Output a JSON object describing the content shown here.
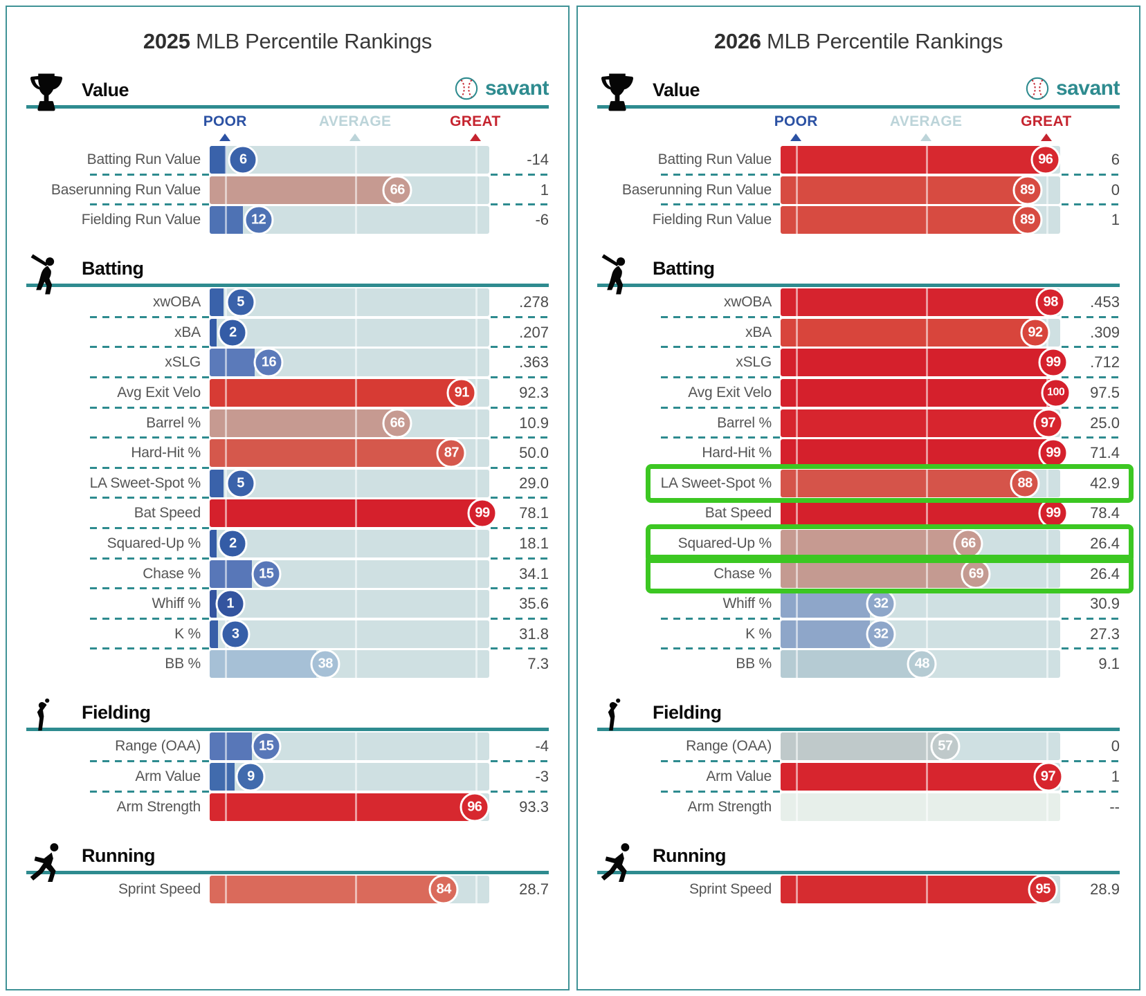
{
  "ui": {
    "logo_text": "savant",
    "scale_labels": {
      "poor": "POOR",
      "average": "AVERAGE",
      "great": "GREAT"
    },
    "scale_marker_positions_pct": [
      5.5,
      52,
      95
    ],
    "colors": {
      "teal_rule": "#2E8B8F",
      "panel_border": "#3f9296",
      "track": "#CFE0E2",
      "track_empty": "#E7EFEA",
      "highlight_green": "#3CC722",
      "poor_blue": "#2B51A3",
      "average_blue": "#BCD4D9",
      "great_red": "#C5242F",
      "label_text": "#555555",
      "value_text": "#4A4A4A",
      "title_text": "#383838"
    }
  },
  "chart_data": {
    "type": "bar",
    "orientation": "horizontal",
    "scale": [
      0,
      100
    ],
    "scale_note": "percentile bars; POOR/AVERAGE/GREAT markers; bubble shows percentile, right column shows raw stat",
    "panels": [
      {
        "title_year": "2025",
        "title_rest": "MLB Percentile Rankings",
        "sections": [
          {
            "name": "Value",
            "icon": "trophy-icon",
            "has_scale_header": true,
            "has_logo": true,
            "rows": [
              {
                "label": "Batting Run Value",
                "percentile": 6,
                "value": "-14",
                "color": "#3A62AA",
                "highlight": false
              },
              {
                "label": "Baserunning Run Value",
                "percentile": 66,
                "value": "1",
                "color": "#C69A91",
                "highlight": false
              },
              {
                "label": "Fielding Run Value",
                "percentile": 12,
                "value": "-6",
                "color": "#4E72B4",
                "highlight": false
              }
            ]
          },
          {
            "name": "Batting",
            "icon": "batter-icon",
            "has_scale_header": false,
            "has_logo": false,
            "rows": [
              {
                "label": "xwOBA",
                "percentile": 5,
                "value": ".278",
                "color": "#3A62AA",
                "highlight": false
              },
              {
                "label": "xBA",
                "percentile": 2,
                "value": ".207",
                "color": "#345CA6",
                "highlight": false
              },
              {
                "label": "xSLG",
                "percentile": 16,
                "value": ".363",
                "color": "#5B7ABA",
                "highlight": false
              },
              {
                "label": "Avg Exit Velo",
                "percentile": 91,
                "value": "92.3",
                "color": "#D73B34",
                "highlight": false
              },
              {
                "label": "Barrel %",
                "percentile": 66,
                "value": "10.9",
                "color": "#C69A91",
                "highlight": false
              },
              {
                "label": "Hard-Hit %",
                "percentile": 87,
                "value": "50.0",
                "color": "#D5584C",
                "highlight": false
              },
              {
                "label": "LA Sweet-Spot %",
                "percentile": 5,
                "value": "29.0",
                "color": "#3A62AA",
                "highlight": false
              },
              {
                "label": "Bat Speed",
                "percentile": 99,
                "value": "78.1",
                "color": "#D5202C",
                "highlight": false
              },
              {
                "label": "Squared-Up %",
                "percentile": 2,
                "value": "18.1",
                "color": "#345CA6",
                "highlight": false
              },
              {
                "label": "Chase %",
                "percentile": 15,
                "value": "34.1",
                "color": "#5877B8",
                "highlight": false
              },
              {
                "label": "Whiff %",
                "percentile": 1,
                "value": "35.6",
                "color": "#33549F",
                "highlight": false
              },
              {
                "label": "K %",
                "percentile": 3,
                "value": "31.8",
                "color": "#375FA8",
                "highlight": false
              },
              {
                "label": "BB %",
                "percentile": 38,
                "value": "7.3",
                "color": "#A6C0D6",
                "highlight": false
              }
            ]
          },
          {
            "name": "Fielding",
            "icon": "fielder-icon",
            "has_scale_header": false,
            "has_logo": false,
            "rows": [
              {
                "label": "Range (OAA)",
                "percentile": 15,
                "value": "-4",
                "color": "#5877B8",
                "highlight": false
              },
              {
                "label": "Arm Value",
                "percentile": 9,
                "value": "-3",
                "color": "#416BAD",
                "highlight": false
              },
              {
                "label": "Arm Strength",
                "percentile": 96,
                "value": "93.3",
                "color": "#D7282F",
                "highlight": false
              }
            ]
          },
          {
            "name": "Running",
            "icon": "runner-icon",
            "has_scale_header": false,
            "has_logo": false,
            "rows": [
              {
                "label": "Sprint Speed",
                "percentile": 84,
                "value": "28.7",
                "color": "#DA6A5B",
                "highlight": false
              }
            ]
          }
        ]
      },
      {
        "title_year": "2026",
        "title_rest": "MLB Percentile Rankings",
        "sections": [
          {
            "name": "Value",
            "icon": "trophy-icon",
            "has_scale_header": true,
            "has_logo": true,
            "rows": [
              {
                "label": "Batting Run Value",
                "percentile": 96,
                "value": "6",
                "color": "#D7282F",
                "highlight": false
              },
              {
                "label": "Baserunning Run Value",
                "percentile": 89,
                "value": "0",
                "color": "#D74B41",
                "highlight": false
              },
              {
                "label": "Fielding Run Value",
                "percentile": 89,
                "value": "1",
                "color": "#D74B41",
                "highlight": false
              }
            ]
          },
          {
            "name": "Batting",
            "icon": "batter-icon",
            "has_scale_header": false,
            "has_logo": false,
            "rows": [
              {
                "label": "xwOBA",
                "percentile": 98,
                "value": ".453",
                "color": "#D6232E",
                "highlight": false
              },
              {
                "label": "xBA",
                "percentile": 92,
                "value": ".309",
                "color": "#D8453C",
                "highlight": false
              },
              {
                "label": "xSLG",
                "percentile": 99,
                "value": ".712",
                "color": "#D5202C",
                "highlight": false
              },
              {
                "label": "Avg Exit Velo",
                "percentile": 100,
                "value": "97.5",
                "color": "#D5202C",
                "highlight": false
              },
              {
                "label": "Barrel %",
                "percentile": 97,
                "value": "25.0",
                "color": "#D7252E",
                "highlight": false
              },
              {
                "label": "Hard-Hit %",
                "percentile": 99,
                "value": "71.4",
                "color": "#D5202C",
                "highlight": false
              },
              {
                "label": "LA Sweet-Spot %",
                "percentile": 88,
                "value": "42.9",
                "color": "#D5544A",
                "highlight": true
              },
              {
                "label": "Bat Speed",
                "percentile": 99,
                "value": "78.4",
                "color": "#D5202C",
                "highlight": false
              },
              {
                "label": "Squared-Up %",
                "percentile": 66,
                "value": "26.4",
                "color": "#C69A91",
                "highlight": true
              },
              {
                "label": "Chase %",
                "percentile": 69,
                "value": "26.4",
                "color": "#C49A91",
                "highlight": true
              },
              {
                "label": "Whiff %",
                "percentile": 32,
                "value": "30.9",
                "color": "#8EA6C9",
                "highlight": false
              },
              {
                "label": "K %",
                "percentile": 32,
                "value": "27.3",
                "color": "#8EA6C9",
                "highlight": false
              },
              {
                "label": "BB %",
                "percentile": 48,
                "value": "9.1",
                "color": "#B5CBD3",
                "highlight": false
              }
            ]
          },
          {
            "name": "Fielding",
            "icon": "fielder-icon",
            "has_scale_header": false,
            "has_logo": false,
            "rows": [
              {
                "label": "Range (OAA)",
                "percentile": 57,
                "value": "0",
                "color": "#BFC9CA",
                "highlight": false
              },
              {
                "label": "Arm Value",
                "percentile": 97,
                "value": "1",
                "color": "#D7252E",
                "highlight": false
              },
              {
                "label": "Arm Strength",
                "percentile": null,
                "value": "--",
                "color": null,
                "highlight": false
              }
            ]
          },
          {
            "name": "Running",
            "icon": "runner-icon",
            "has_scale_header": false,
            "has_logo": false,
            "rows": [
              {
                "label": "Sprint Speed",
                "percentile": 95,
                "value": "28.9",
                "color": "#D62C30",
                "highlight": false
              }
            ]
          }
        ]
      }
    ]
  }
}
